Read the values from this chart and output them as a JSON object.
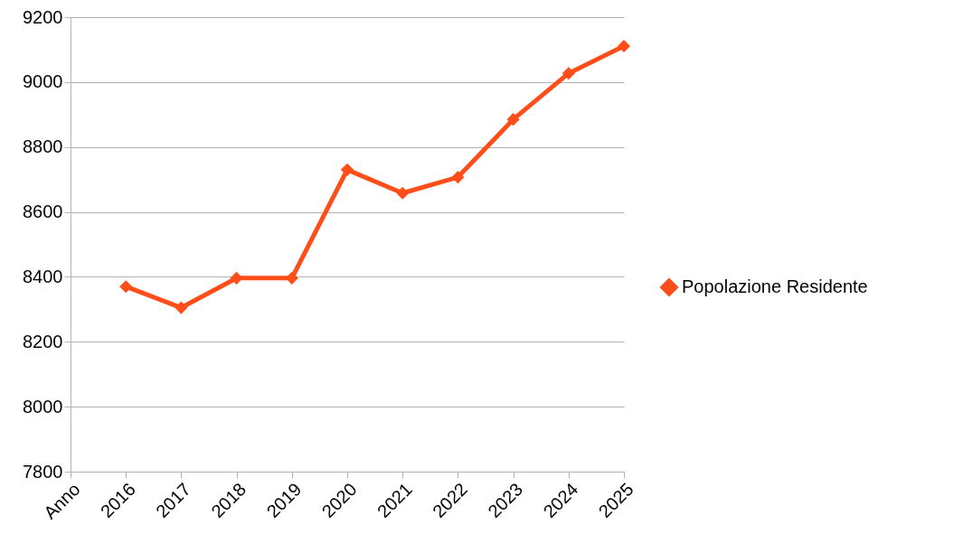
{
  "chart_data": {
    "type": "line",
    "categories": [
      "Anno",
      "2016",
      "2017",
      "2018",
      "2019",
      "2020",
      "2021",
      "2022",
      "2023",
      "2024",
      "2025"
    ],
    "series": [
      {
        "name": "Popolazione Residente",
        "color": "#ff4e1a",
        "values": [
          null,
          8370,
          8305,
          8396,
          8396,
          8730,
          8658,
          8707,
          8885,
          9027,
          9111
        ]
      }
    ],
    "ylim": [
      7800,
      9200
    ],
    "yticks": [
      7800,
      8000,
      8200,
      8400,
      8600,
      8800,
      9000,
      9200
    ],
    "grid": "y",
    "legend": "right",
    "marker": "diamond",
    "line_style": "solid"
  }
}
